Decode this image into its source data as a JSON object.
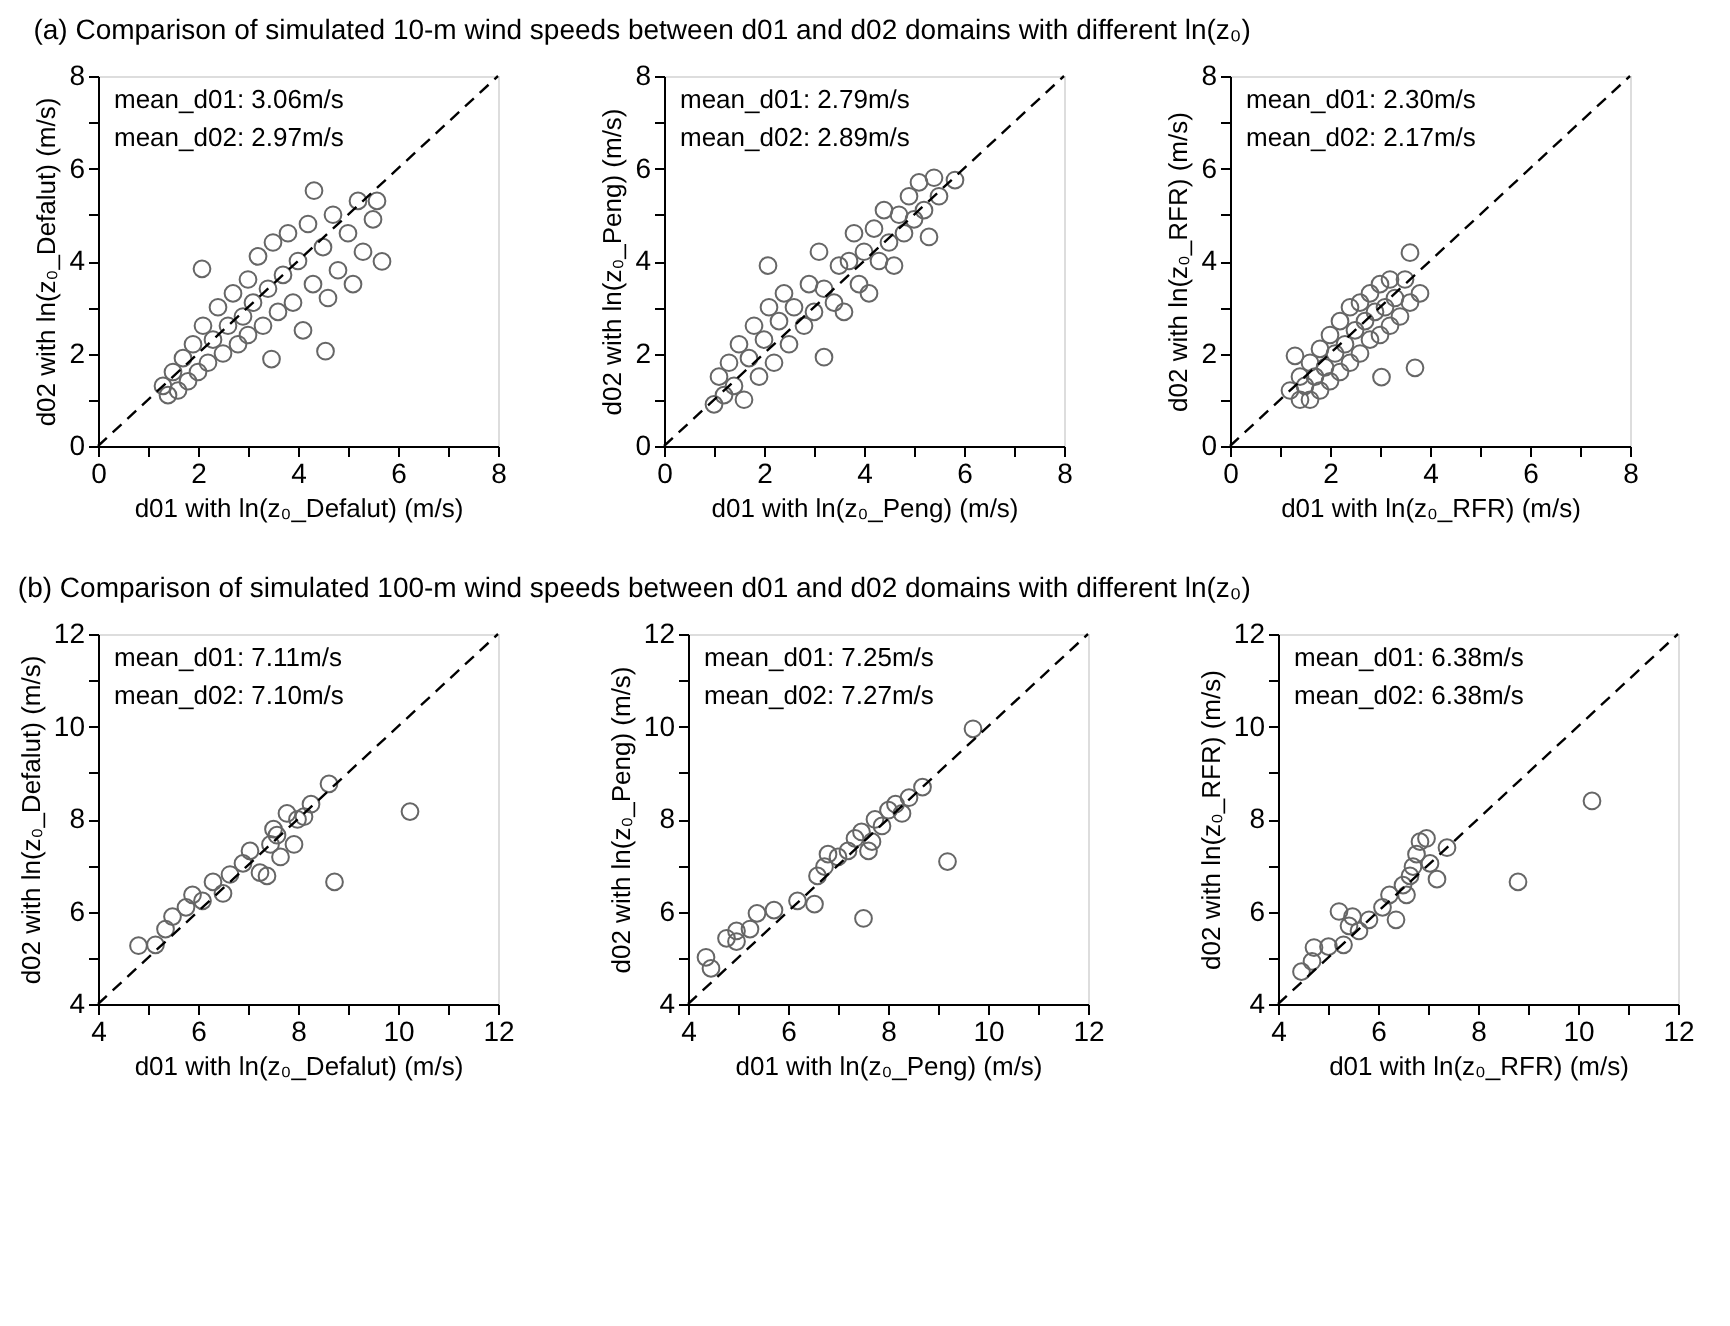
{
  "chart_data": [
    {
      "type": "scatter",
      "title": "(a) Comparison of simulated 10-m wind speeds between d01 and d02 domains with different ln(z₀)",
      "xlabel": "d01 with ln(z₀_Defalut) (m/s)",
      "ylabel": "d02 with ln(z₀_Defalut) (m/s)",
      "annotations": [
        "mean_d01: 3.06m/s",
        "mean_d02: 2.97m/s"
      ],
      "xlim": [
        0,
        8
      ],
      "ylim": [
        0,
        8
      ],
      "xticks": [
        0,
        {
          "value": 1,
          "label": null
        },
        2,
        {
          "value": 3,
          "label": null
        },
        4,
        {
          "value": 5,
          "label": null
        },
        6,
        {
          "value": 7,
          "label": null
        },
        8
      ],
      "yticks": [
        0,
        {
          "value": 1,
          "label": null
        },
        2,
        {
          "value": 3,
          "label": null
        },
        4,
        {
          "value": 5,
          "label": null
        },
        6,
        {
          "value": 7,
          "label": null
        },
        8
      ],
      "grid": false,
      "marker": "circle",
      "series": [
        {
          "color": "#666666",
          "x": [
            1.3,
            1.4,
            1.5,
            1.6,
            1.7,
            1.8,
            1.9,
            2.0,
            2.08,
            2.1,
            2.2,
            2.3,
            2.4,
            2.5,
            2.6,
            2.7,
            2.8,
            2.9,
            3.0,
            3.0,
            3.1,
            3.2,
            3.3,
            3.4,
            3.47,
            3.5,
            3.6,
            3.7,
            3.8,
            3.9,
            4.0,
            4.1,
            4.2,
            4.32,
            4.3,
            4.55,
            4.5,
            4.6,
            4.7,
            4.8,
            5.0,
            5.1,
            5.2,
            5.3,
            5.58,
            5.68,
            5.5
          ],
          "values": [
            1.3,
            1.1,
            1.6,
            1.2,
            1.9,
            1.4,
            2.2,
            1.6,
            3.83,
            2.6,
            1.8,
            2.3,
            3.0,
            2.0,
            2.6,
            3.3,
            2.2,
            2.8,
            3.6,
            2.4,
            3.1,
            4.1,
            2.6,
            3.4,
            1.88,
            4.4,
            2.9,
            3.7,
            4.6,
            3.1,
            4.0,
            2.5,
            4.8,
            5.52,
            3.5,
            2.05,
            4.3,
            3.2,
            5.0,
            3.8,
            4.6,
            3.5,
            5.3,
            4.2,
            5.3,
            3.99,
            4.9
          ]
        },
        {
          "type": "line",
          "color": "#000000",
          "line_style": "dashed",
          "marker": "none",
          "x": [
            0,
            8
          ],
          "values": [
            0,
            8
          ]
        }
      ]
    },
    {
      "type": "scatter",
      "xlabel": "d01 with ln(z₀_Peng) (m/s)",
      "ylabel": "d02 with ln(z₀_Peng) (m/s)",
      "annotations": [
        "mean_d01: 2.79m/s",
        "mean_d02: 2.89m/s"
      ],
      "xlim": [
        0,
        8
      ],
      "ylim": [
        0,
        8
      ],
      "xticks": [
        0,
        {
          "value": 1,
          "label": null
        },
        2,
        {
          "value": 3,
          "label": null
        },
        4,
        {
          "value": 5,
          "label": null
        },
        6,
        {
          "value": 7,
          "label": null
        },
        8
      ],
      "yticks": [
        0,
        {
          "value": 1,
          "label": null
        },
        2,
        {
          "value": 3,
          "label": null
        },
        4,
        {
          "value": 5,
          "label": null
        },
        6,
        {
          "value": 7,
          "label": null
        },
        8
      ],
      "grid": false,
      "marker": "circle",
      "series": [
        {
          "color": "#666666",
          "x": [
            1.0,
            1.1,
            1.2,
            1.3,
            1.4,
            1.5,
            1.6,
            1.7,
            1.8,
            1.9,
            2.0,
            2.08,
            2.1,
            2.2,
            2.3,
            2.4,
            2.5,
            2.6,
            2.8,
            2.9,
            3.0,
            3.1,
            3.2,
            3.2,
            3.4,
            3.5,
            3.6,
            3.7,
            3.8,
            3.9,
            4.0,
            4.1,
            4.2,
            4.3,
            4.4,
            4.5,
            4.6,
            4.7,
            4.8,
            4.9,
            5.0,
            5.1,
            5.2,
            5.3,
            5.4,
            5.5,
            5.82
          ],
          "values": [
            0.9,
            1.5,
            1.1,
            1.8,
            1.3,
            2.2,
            1.0,
            1.9,
            2.6,
            1.5,
            2.3,
            3.9,
            3.0,
            1.8,
            2.7,
            3.3,
            2.2,
            3.0,
            2.6,
            3.5,
            2.9,
            4.2,
            1.92,
            3.4,
            3.1,
            3.9,
            2.9,
            4.0,
            4.6,
            3.5,
            4.2,
            3.3,
            4.7,
            4.0,
            5.1,
            4.4,
            3.9,
            5.0,
            4.6,
            5.4,
            4.9,
            5.7,
            5.1,
            4.52,
            5.8,
            5.4,
            5.75
          ]
        },
        {
          "type": "line",
          "color": "#000000",
          "line_style": "dashed",
          "marker": "none",
          "x": [
            0,
            8
          ],
          "values": [
            0,
            8
          ]
        }
      ]
    },
    {
      "type": "scatter",
      "xlabel": "d01 with ln(z₀_RFR) (m/s)",
      "ylabel": "d02 with ln(z₀_RFR) (m/s)",
      "annotations": [
        "mean_d01: 2.30m/s",
        "mean_d02: 2.17m/s"
      ],
      "xlim": [
        0,
        8
      ],
      "ylim": [
        0,
        8
      ],
      "xticks": [
        0,
        {
          "value": 1,
          "label": null
        },
        2,
        {
          "value": 3,
          "label": null
        },
        4,
        {
          "value": 5,
          "label": null
        },
        6,
        {
          "value": 7,
          "label": null
        },
        8
      ],
      "yticks": [
        0,
        {
          "value": 1,
          "label": null
        },
        2,
        {
          "value": 3,
          "label": null
        },
        4,
        {
          "value": 5,
          "label": null
        },
        6,
        {
          "value": 7,
          "label": null
        },
        8
      ],
      "grid": false,
      "marker": "circle",
      "series": [
        {
          "color": "#666666",
          "x": [
            1.2,
            1.3,
            1.4,
            1.4,
            1.5,
            1.6,
            1.6,
            1.7,
            1.8,
            1.8,
            1.9,
            2.0,
            2.0,
            2.1,
            2.2,
            2.2,
            2.3,
            2.4,
            2.4,
            2.5,
            2.6,
            2.6,
            2.7,
            2.8,
            2.8,
            2.9,
            3.0,
            3.03,
            3.0,
            3.1,
            3.2,
            3.2,
            3.3,
            3.4,
            3.5,
            3.6,
            3.6,
            3.7,
            3.8
          ],
          "values": [
            1.2,
            1.95,
            1.0,
            1.5,
            1.3,
            1.8,
            1.0,
            1.5,
            2.1,
            1.2,
            1.7,
            2.4,
            1.4,
            2.0,
            2.7,
            1.6,
            2.2,
            3.0,
            1.8,
            2.5,
            3.1,
            2.0,
            2.7,
            3.3,
            2.3,
            2.9,
            3.5,
            1.49,
            2.4,
            3.0,
            3.6,
            2.6,
            3.2,
            2.8,
            3.6,
            4.18,
            3.1,
            1.69,
            3.3
          ]
        },
        {
          "type": "line",
          "color": "#000000",
          "line_style": "dashed",
          "marker": "none",
          "x": [
            0,
            8
          ],
          "values": [
            0,
            8
          ]
        }
      ]
    },
    {
      "type": "scatter",
      "title": "(b) Comparison of simulated 100-m wind speeds between d01 and d02 domains with different ln(z₀)",
      "xlabel": "d01 with ln(z₀_Defalut) (m/s)",
      "ylabel": "d02 with ln(z₀_Defalut) (m/s)",
      "annotations": [
        "mean_d01: 7.11m/s",
        "mean_d02: 7.10m/s"
      ],
      "xlim": [
        4,
        12
      ],
      "ylim": [
        4,
        12
      ],
      "xticks": [
        4,
        {
          "value": 5,
          "label": null
        },
        6,
        {
          "value": 7,
          "label": null
        },
        8,
        {
          "value": 9,
          "label": null
        },
        10,
        {
          "value": 11,
          "label": null
        },
        12
      ],
      "yticks": [
        4,
        {
          "value": 5,
          "label": null
        },
        6,
        {
          "value": 7,
          "label": null
        },
        8,
        {
          "value": 9,
          "label": null
        },
        10,
        {
          "value": 11,
          "label": null
        },
        12
      ],
      "grid": false,
      "marker": "circle",
      "series": [
        {
          "color": "#666666",
          "x": [
            4.81,
            5.15,
            5.35,
            5.49,
            5.76,
            5.89,
            6.09,
            6.3,
            6.5,
            6.64,
            6.9,
            7.04,
            7.24,
            7.38,
            7.45,
            7.51,
            7.58,
            7.65,
            7.78,
            7.92,
            7.99,
            8.12,
            8.26,
            8.62,
            8.73,
            10.24
          ],
          "values": [
            5.26,
            5.28,
            5.62,
            5.89,
            6.09,
            6.36,
            6.23,
            6.64,
            6.39,
            6.8,
            7.04,
            7.31,
            6.84,
            6.77,
            7.45,
            7.78,
            7.65,
            7.18,
            8.12,
            7.45,
            7.99,
            8.05,
            8.32,
            8.76,
            6.64,
            8.16
          ]
        },
        {
          "type": "line",
          "color": "#000000",
          "line_style": "dashed",
          "marker": "none",
          "x": [
            4,
            12
          ],
          "values": [
            4,
            12
          ]
        }
      ]
    },
    {
      "type": "scatter",
      "xlabel": "d01 with ln(z₀_Peng) (m/s)",
      "ylabel": "d02 with ln(z₀_Peng) (m/s)",
      "annotations": [
        "mean_d01: 7.25m/s",
        "mean_d02: 7.27m/s"
      ],
      "xlim": [
        4,
        12
      ],
      "ylim": [
        4,
        12
      ],
      "xticks": [
        4,
        {
          "value": 5,
          "label": null
        },
        6,
        {
          "value": 7,
          "label": null
        },
        8,
        {
          "value": 9,
          "label": null
        },
        10,
        {
          "value": 11,
          "label": null
        },
        12
      ],
      "yticks": [
        4,
        {
          "value": 5,
          "label": null
        },
        6,
        {
          "value": 7,
          "label": null
        },
        8,
        {
          "value": 9,
          "label": null
        },
        10,
        {
          "value": 11,
          "label": null
        },
        12
      ],
      "grid": false,
      "marker": "circle",
      "series": [
        {
          "color": "#666666",
          "x": [
            4.36,
            4.46,
            4.77,
            4.97,
            4.97,
            5.24,
            5.38,
            5.72,
            6.19,
            6.53,
            6.59,
            6.73,
            6.8,
            7.0,
            7.2,
            7.34,
            7.47,
            7.51,
            7.61,
            7.68,
            7.74,
            7.88,
            8.01,
            8.15,
            8.28,
            8.42,
            8.69,
            9.19,
            9.7
          ],
          "values": [
            5.01,
            4.77,
            5.42,
            5.35,
            5.58,
            5.62,
            5.96,
            6.03,
            6.23,
            6.16,
            6.77,
            6.97,
            7.24,
            7.18,
            7.31,
            7.58,
            7.72,
            5.85,
            7.31,
            7.51,
            7.99,
            7.85,
            8.19,
            8.32,
            8.12,
            8.46,
            8.69,
            7.08,
            9.95
          ]
        },
        {
          "type": "line",
          "color": "#000000",
          "line_style": "dashed",
          "marker": "none",
          "x": [
            4,
            12
          ],
          "values": [
            4,
            12
          ]
        }
      ]
    },
    {
      "type": "scatter",
      "xlabel": "d01 with ln(z₀_RFR) (m/s)",
      "ylabel": "d02 with ln(z₀_RFR) (m/s)",
      "annotations": [
        "mean_d01: 6.38m/s",
        "mean_d02: 6.38m/s"
      ],
      "xlim": [
        4,
        12
      ],
      "ylim": [
        4,
        12
      ],
      "xticks": [
        4,
        {
          "value": 5,
          "label": null
        },
        6,
        {
          "value": 7,
          "label": null
        },
        8,
        {
          "value": 9,
          "label": null
        },
        10,
        {
          "value": 11,
          "label": null
        },
        12
      ],
      "yticks": [
        4,
        {
          "value": 5,
          "label": null
        },
        6,
        {
          "value": 7,
          "label": null
        },
        8,
        {
          "value": 9,
          "label": null
        },
        10,
        {
          "value": 11,
          "label": null
        },
        12
      ],
      "grid": false,
      "marker": "circle",
      "series": [
        {
          "color": "#666666",
          "x": [
            4.47,
            4.68,
            4.72,
            5.01,
            5.22,
            5.31,
            5.42,
            5.49,
            5.62,
            5.82,
            6.09,
            6.23,
            6.36,
            6.5,
            6.57,
            6.64,
            6.7,
            6.77,
            6.84,
            6.97,
            7.04,
            7.18,
            7.38,
            8.8,
            10.28
          ],
          "values": [
            4.7,
            4.92,
            5.22,
            5.24,
            6.0,
            5.28,
            5.69,
            5.89,
            5.58,
            5.82,
            6.09,
            6.36,
            5.82,
            6.57,
            6.36,
            6.77,
            6.97,
            7.24,
            7.51,
            7.58,
            7.04,
            6.7,
            7.38,
            6.64,
            8.39
          ]
        },
        {
          "type": "line",
          "color": "#000000",
          "line_style": "dashed",
          "marker": "none",
          "x": [
            4,
            12
          ],
          "values": [
            4,
            12
          ]
        }
      ]
    }
  ]
}
